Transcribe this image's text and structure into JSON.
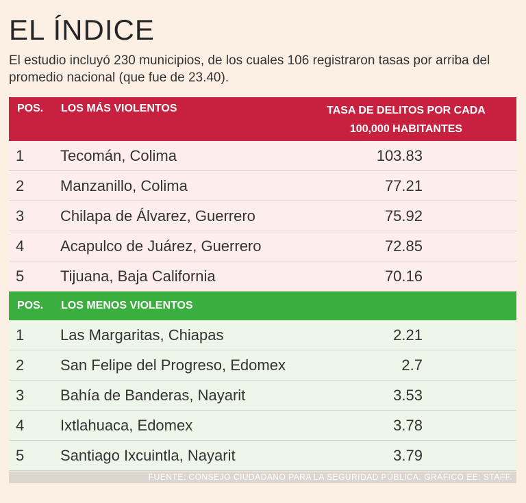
{
  "title": "EL ÍNDICE",
  "intro": "El estudio incluyó 230 municipios, de los cuales 106 registraron tasas por arriba del promedio nacional (que fue de 23.40).",
  "violent": {
    "header": {
      "pos": "POS.",
      "name": "LOS MÁS VIOLENTOS",
      "rate_line1": "TASA DE DELITOS POR CADA",
      "rate_line2": "100,000 HABITANTES"
    },
    "header_color": "#c8203f",
    "rows": [
      {
        "pos": "1",
        "name": "Tecomán, Colima",
        "value": "103.83"
      },
      {
        "pos": "2",
        "name": "Manzanillo, Colima",
        "value": "77.21"
      },
      {
        "pos": "3",
        "name": "Chilapa de Álvarez, Guerrero",
        "value": "75.92"
      },
      {
        "pos": "4",
        "name": "Acapulco de Juárez, Guerrero",
        "value": "72.85"
      },
      {
        "pos": "5",
        "name": "Tijuana, Baja California",
        "value": "70.16"
      }
    ]
  },
  "safe": {
    "header": {
      "pos": "POS.",
      "name": "LOS MENOS VIOLENTOS"
    },
    "header_color": "#3aae3f",
    "rows": [
      {
        "pos": "1",
        "name": "Las Margaritas, Chiapas",
        "value": "2.21"
      },
      {
        "pos": "2",
        "name": "San Felipe del Progreso, Edomex",
        "value": "2.7"
      },
      {
        "pos": "3",
        "name": "Bahía de Banderas, Nayarit",
        "value": "3.53"
      },
      {
        "pos": "4",
        "name": "Ixtlahuaca, Edomex",
        "value": "3.78"
      },
      {
        "pos": "5",
        "name": "Santiago Ixcuintla, Nayarit",
        "value": "3.79"
      }
    ]
  },
  "footer": "FUENTE: CONSEJO CIUDADANO PARA LA SEGURIDAD PÚBLICA. GRÁFICO EE: STAFF."
}
